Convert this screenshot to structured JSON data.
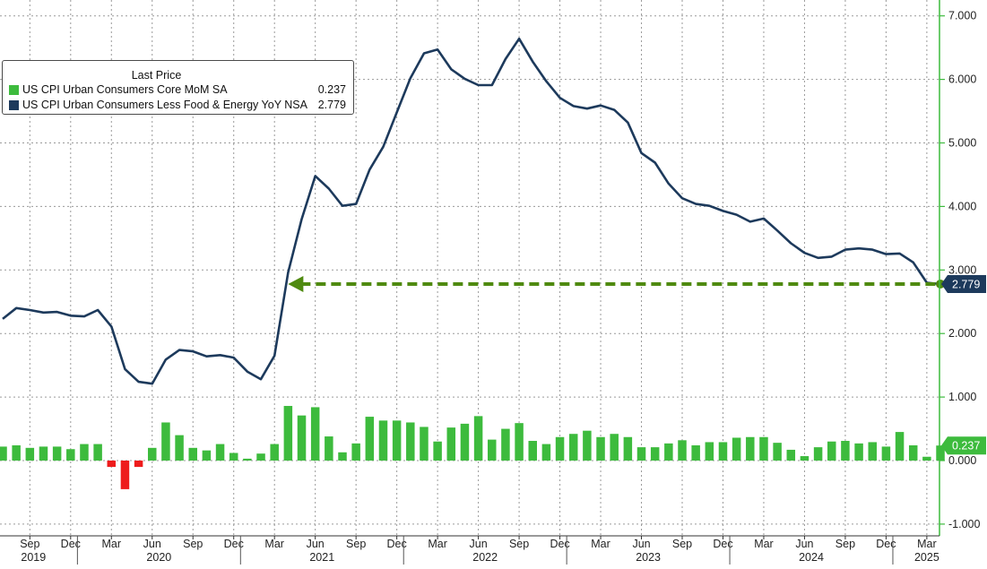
{
  "chart_data": {
    "type": "bar+line",
    "colors": {
      "bar_positive": "#3dbb3d",
      "bar_negative": "#ee1c1c",
      "line": "#1d3a5c",
      "arrow": "#4f8a10",
      "axis": "#3dbb3d"
    },
    "legend": {
      "title": "Last Price",
      "placement": "top-left",
      "items": [
        {
          "name": "US CPI Urban Consumers Core MoM SA",
          "value": "0.237",
          "color": "#3dbb3d"
        },
        {
          "name": "US CPI Urban Consumers Less Food & Energy YoY NSA",
          "value": "2.779",
          "color": "#1d3a5c"
        }
      ]
    },
    "y_axis": {
      "side": "right",
      "ylim": [
        -1.2,
        7.2
      ],
      "ticks": [
        "7.000",
        "6.000",
        "5.000",
        "4.000",
        "3.000",
        "2.000",
        "1.000",
        "0.000",
        "-1.000"
      ]
    },
    "x_axis": {
      "month_ticks": [
        "Sep",
        "Dec",
        "Mar",
        "Jun",
        "Sep",
        "Dec",
        "Mar",
        "Jun",
        "Sep",
        "Dec",
        "Mar",
        "Jun",
        "Sep",
        "Dec",
        "Mar",
        "Jun",
        "Sep",
        "Dec",
        "Mar",
        "Jun",
        "Sep",
        "Dec",
        "Mar"
      ],
      "year_labels": [
        "2019",
        "2020",
        "2021",
        "2022",
        "2023",
        "2024",
        "2025"
      ]
    },
    "grid": true,
    "x": [
      "2019-07",
      "2019-08",
      "2019-09",
      "2019-10",
      "2019-11",
      "2019-12",
      "2020-01",
      "2020-02",
      "2020-03",
      "2020-04",
      "2020-05",
      "2020-06",
      "2020-07",
      "2020-08",
      "2020-09",
      "2020-10",
      "2020-11",
      "2020-12",
      "2021-01",
      "2021-02",
      "2021-03",
      "2021-04",
      "2021-05",
      "2021-06",
      "2021-07",
      "2021-08",
      "2021-09",
      "2021-10",
      "2021-11",
      "2021-12",
      "2022-01",
      "2022-02",
      "2022-03",
      "2022-04",
      "2022-05",
      "2022-06",
      "2022-07",
      "2022-08",
      "2022-09",
      "2022-10",
      "2022-11",
      "2022-12",
      "2023-01",
      "2023-02",
      "2023-03",
      "2023-04",
      "2023-05",
      "2023-06",
      "2023-07",
      "2023-08",
      "2023-09",
      "2023-10",
      "2023-11",
      "2023-12",
      "2024-01",
      "2024-02",
      "2024-03",
      "2024-04",
      "2024-05",
      "2024-06",
      "2024-07",
      "2024-08",
      "2024-09",
      "2024-10",
      "2024-11",
      "2024-12",
      "2025-01",
      "2025-02",
      "2025-03",
      "2025-04"
    ],
    "series": [
      {
        "name": "US CPI Urban Consumers Core MoM SA",
        "type": "bar",
        "values": [
          0.22,
          0.24,
          0.2,
          0.22,
          0.22,
          0.18,
          0.26,
          0.26,
          -0.1,
          -0.45,
          -0.1,
          0.2,
          0.6,
          0.4,
          0.2,
          0.16,
          0.26,
          0.12,
          0.03,
          0.11,
          0.26,
          0.86,
          0.71,
          0.84,
          0.38,
          0.13,
          0.27,
          0.69,
          0.63,
          0.63,
          0.6,
          0.53,
          0.3,
          0.52,
          0.58,
          0.7,
          0.33,
          0.5,
          0.59,
          0.31,
          0.26,
          0.37,
          0.42,
          0.47,
          0.37,
          0.42,
          0.37,
          0.21,
          0.21,
          0.27,
          0.32,
          0.24,
          0.29,
          0.29,
          0.36,
          0.37,
          0.37,
          0.28,
          0.17,
          0.07,
          0.21,
          0.3,
          0.31,
          0.27,
          0.29,
          0.22,
          0.45,
          0.24,
          0.06,
          0.237
        ]
      },
      {
        "name": "US CPI Urban Consumers Less Food & Energy YoY NSA",
        "type": "line",
        "values": [
          2.23,
          2.4,
          2.37,
          2.33,
          2.34,
          2.28,
          2.27,
          2.37,
          2.11,
          1.44,
          1.24,
          1.21,
          1.59,
          1.74,
          1.72,
          1.64,
          1.66,
          1.62,
          1.4,
          1.28,
          1.65,
          2.96,
          3.8,
          4.48,
          4.28,
          4.01,
          4.04,
          4.58,
          4.94,
          5.48,
          6.02,
          6.41,
          6.47,
          6.16,
          6.01,
          5.91,
          5.91,
          6.32,
          6.64,
          6.28,
          5.97,
          5.71,
          5.58,
          5.54,
          5.59,
          5.52,
          5.32,
          4.84,
          4.69,
          4.36,
          4.13,
          4.04,
          4.01,
          3.93,
          3.87,
          3.76,
          3.81,
          3.62,
          3.42,
          3.27,
          3.19,
          3.21,
          3.32,
          3.34,
          3.32,
          3.25,
          3.26,
          3.12,
          2.8,
          2.779
        ]
      }
    ],
    "annotations": [
      {
        "type": "dashed-arrow",
        "y": 2.779,
        "from": "2021-04",
        "to": "2025-04"
      }
    ],
    "last_value_labels": [
      {
        "series": "US CPI Urban Consumers Less Food & Energy YoY NSA",
        "text": "2.779"
      },
      {
        "series": "US CPI Urban Consumers Core MoM SA",
        "text": "0.237"
      }
    ]
  }
}
